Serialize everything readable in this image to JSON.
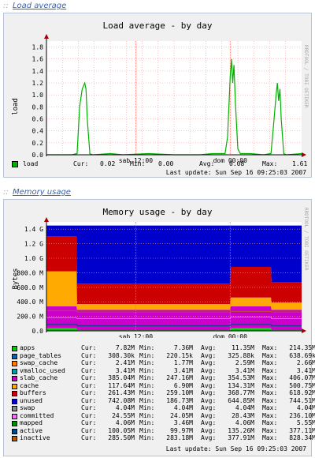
{
  "load": {
    "section_label": "Load average",
    "chart_title": "Load average - by day",
    "ylabel": "load",
    "y_ticks": [
      "1.8",
      "1.6",
      "1.4",
      "1.2",
      "1.0",
      "0.8",
      "0.6",
      "0.4",
      "0.2",
      "0.0"
    ],
    "x_ticks": [
      "sab 12:00",
      "dom 00:00"
    ],
    "watermark": "RRDTOOL / TOBI OETIKER",
    "legend": {
      "name": "load",
      "cur_label": "Cur:",
      "cur": "0.02",
      "min_label": "Min:",
      "min": "0.00",
      "avg_label": "Avg:",
      "avg": "0.08",
      "max_label": "Max:",
      "max": "1.61",
      "color": "#00b000"
    },
    "last_update": "Last update: Sun Sep 16 09:25:03 2007"
  },
  "memory": {
    "section_label": "Memory usage",
    "chart_title": "Memory usage - by day",
    "ylabel": "Bytes",
    "y_ticks": [
      "1.4 G",
      "1.2 G",
      "1.0 G",
      "800.0 M",
      "600.0 M",
      "400.0 M",
      "200.0 M",
      "0.0"
    ],
    "x_ticks": [
      "sab 12:00",
      "dom 00:00"
    ],
    "watermark": "RRDTOOL / TOBI OETIKER",
    "col_headers": {
      "cur": "Cur:",
      "min": "Min:",
      "avg": "Avg:",
      "max": "Max:"
    },
    "legend": [
      {
        "name": "apps",
        "color": "#00cc00",
        "cur": "7.82M",
        "min": "7.36M",
        "avg": "11.35M",
        "max": "214.35M"
      },
      {
        "name": "page_tables",
        "color": "#0066b3",
        "cur": "308.30k",
        "min": "220.15k",
        "avg": "325.88k",
        "max": "638.69k"
      },
      {
        "name": "swap_cache",
        "color": "#ff8000",
        "cur": "2.41M",
        "min": "1.77M",
        "avg": "2.59M",
        "max": "2.66M"
      },
      {
        "name": "vmalloc_used",
        "color": "#00a0a0",
        "cur": "3.41M",
        "min": "3.41M",
        "avg": "3.41M",
        "max": "3.41M"
      },
      {
        "name": "slab_cache",
        "color": "#cc00cc",
        "cur": "385.04M",
        "min": "247.16M",
        "avg": "354.53M",
        "max": "406.07M"
      },
      {
        "name": "cache",
        "color": "#ffaa00",
        "cur": "117.64M",
        "min": "6.90M",
        "avg": "134.31M",
        "max": "500.75M"
      },
      {
        "name": "buffers",
        "color": "#cc0000",
        "cur": "261.43M",
        "min": "259.10M",
        "avg": "368.77M",
        "max": "618.92M"
      },
      {
        "name": "unused",
        "color": "#0000cc",
        "cur": "742.08M",
        "min": "186.73M",
        "avg": "644.85M",
        "max": "744.51M"
      },
      {
        "name": "swap",
        "color": "#888888",
        "cur": "4.04M",
        "min": "4.04M",
        "avg": "4.04M",
        "max": "4.04M"
      },
      {
        "name": "committed",
        "color": "#ff66ff",
        "cur": "24.55M",
        "min": "24.05M",
        "avg": "28.43M",
        "max": "236.10M"
      },
      {
        "name": "mapped",
        "color": "#008f00",
        "cur": "4.06M",
        "min": "3.46M",
        "avg": "4.06M",
        "max": "5.55M"
      },
      {
        "name": "active",
        "color": "#00487d",
        "cur": "100.05M",
        "min": "99.97M",
        "avg": "135.26M",
        "max": "377.11M"
      },
      {
        "name": "inactive",
        "color": "#b35a00",
        "cur": "285.50M",
        "min": "283.18M",
        "avg": "377.91M",
        "max": "828.34M"
      }
    ],
    "last_update": "Last update: Sun Sep 16 09:25:03 2007"
  },
  "chart_data": [
    {
      "type": "line",
      "title": "Load average - by day",
      "ylabel": "load",
      "ylim": [
        0,
        1.9
      ],
      "x_ticks": [
        "sab 12:00",
        "dom 00:00"
      ],
      "grid": true,
      "series": [
        {
          "name": "load",
          "x": [
            0,
            0.05,
            0.1,
            0.12,
            0.13,
            0.14,
            0.145,
            0.15,
            0.155,
            0.16,
            0.17,
            0.18,
            0.25,
            0.3,
            0.4,
            0.5,
            0.6,
            0.65,
            0.7,
            0.71,
            0.72,
            0.725,
            0.73,
            0.735,
            0.74,
            0.75,
            0.76,
            0.8,
            0.85,
            0.88,
            0.89,
            0.9,
            0.905,
            0.91,
            0.915,
            0.92,
            0.93,
            0.94,
            1.0
          ],
          "values": [
            0,
            0,
            0,
            0.02,
            0.8,
            1.1,
            1.15,
            1.2,
            1.1,
            0.6,
            0.02,
            0,
            0.02,
            0,
            0.02,
            0,
            0,
            0.02,
            0.02,
            0.3,
            1.3,
            1.6,
            1.2,
            1.5,
            0.9,
            0.1,
            0.02,
            0.02,
            0,
            0.02,
            0.5,
            1.0,
            1.2,
            0.9,
            1.1,
            0.6,
            0.02,
            0,
            0.02
          ]
        }
      ]
    },
    {
      "type": "area",
      "title": "Memory usage - by day",
      "ylabel": "Bytes",
      "ylim": [
        0,
        1.5
      ],
      "x_ticks": [
        "sab 12:00",
        "dom 00:00"
      ],
      "grid": true,
      "stacked": true,
      "x": [
        0,
        0.118,
        0.12,
        0.72,
        0.722,
        0.88,
        0.882,
        1.0
      ],
      "series": [
        {
          "name": "apps",
          "values": [
            0.04,
            0.04,
            0.01,
            0.01,
            0.04,
            0.04,
            0.01,
            0.01
          ]
        },
        {
          "name": "slab_cache",
          "values": [
            0.3,
            0.3,
            0.28,
            0.28,
            0.3,
            0.3,
            0.28,
            0.28
          ]
        },
        {
          "name": "cache",
          "values": [
            0.48,
            0.48,
            0.08,
            0.08,
            0.12,
            0.12,
            0.1,
            0.1
          ]
        },
        {
          "name": "buffers",
          "values": [
            0.48,
            0.48,
            0.28,
            0.28,
            0.42,
            0.42,
            0.28,
            0.28
          ]
        },
        {
          "name": "unused",
          "values": [
            0.15,
            0.15,
            0.8,
            0.8,
            0.57,
            0.57,
            0.78,
            0.78
          ]
        }
      ]
    }
  ]
}
